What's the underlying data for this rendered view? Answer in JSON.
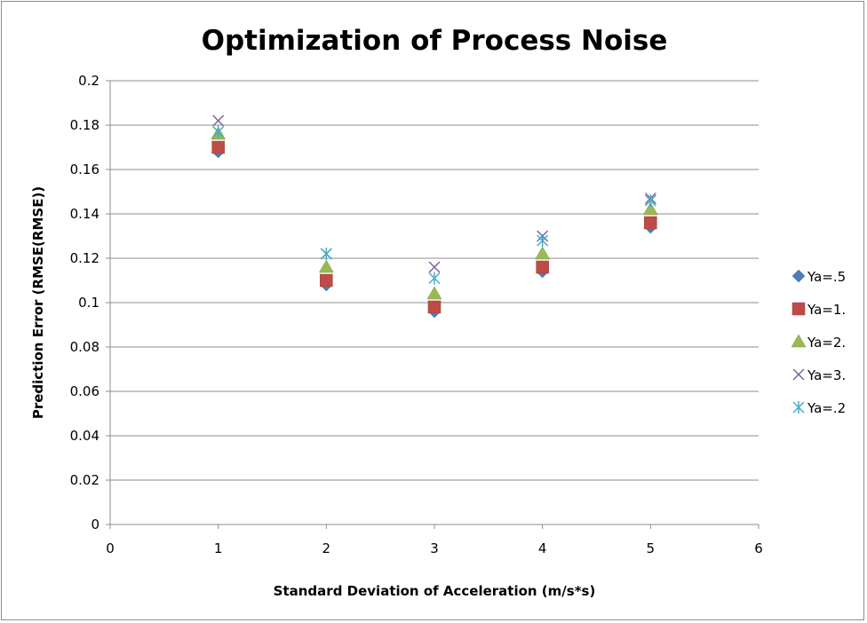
{
  "chart_data": {
    "type": "scatter",
    "title": "Optimization of Process Noise",
    "xlabel": "Standard Deviation of Acceleration (m/s*s)",
    "ylabel": "Prediction Error (RMSE(RMSE))",
    "xlim": [
      0,
      6
    ],
    "ylim": [
      0,
      0.2
    ],
    "x_ticks": [
      "0",
      "1",
      "2",
      "3",
      "4",
      "5",
      "6"
    ],
    "y_ticks": [
      "0",
      "0.02",
      "0.04",
      "0.06",
      "0.08",
      "0.1",
      "0.12",
      "0.14",
      "0.16",
      "0.18",
      "0.2"
    ],
    "grid": "horizontal",
    "legend_position": "right",
    "series": [
      {
        "name": "Ya=.5",
        "marker": "diamond",
        "color": "#4a7ebb",
        "x": [
          1,
          2,
          3,
          4,
          5
        ],
        "y": [
          0.168,
          0.108,
          0.096,
          0.114,
          0.134
        ]
      },
      {
        "name": "Ya=1.",
        "marker": "square",
        "color": "#be4b48",
        "x": [
          1,
          2,
          3,
          4,
          5
        ],
        "y": [
          0.17,
          0.11,
          0.098,
          0.116,
          0.136
        ]
      },
      {
        "name": "Ya=2.",
        "marker": "triangle",
        "color": "#98b954",
        "x": [
          1,
          2,
          3,
          4,
          5
        ],
        "y": [
          0.176,
          0.116,
          0.104,
          0.122,
          0.142
        ]
      },
      {
        "name": "Ya=3.",
        "marker": "x",
        "color": "#7d60a0",
        "x": [
          1,
          2,
          3,
          4,
          5
        ],
        "y": [
          0.182,
          0.122,
          0.116,
          0.13,
          0.147
        ]
      },
      {
        "name": "Ya=.2",
        "marker": "star",
        "color": "#46aac5",
        "x": [
          1,
          2,
          3,
          4,
          5
        ],
        "y": [
          0.177,
          0.122,
          0.111,
          0.128,
          0.146
        ]
      }
    ]
  }
}
